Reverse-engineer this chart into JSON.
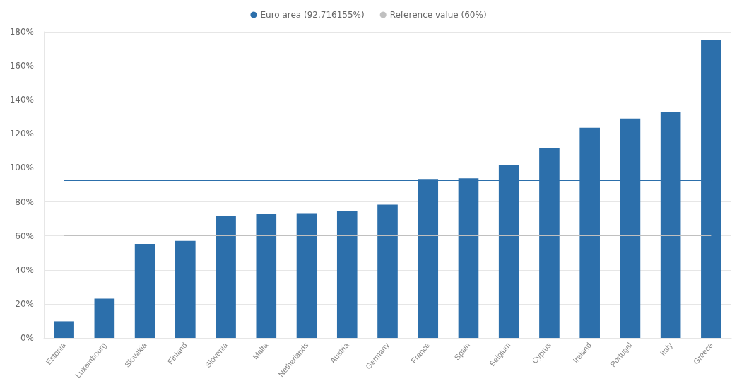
{
  "chart_data": {
    "type": "bar",
    "categories": [
      "Estonia",
      "Luxembourg",
      "Slovakia",
      "Finland",
      "Slovenia",
      "Malta",
      "Netherlands",
      "Austria",
      "Germany",
      "France",
      "Spain",
      "Belgium",
      "Cyprus",
      "Ireland",
      "Portugal",
      "Italy",
      "Greece"
    ],
    "values": [
      9.8,
      23.1,
      55.3,
      57.1,
      71.7,
      72.9,
      73.4,
      74.4,
      78.4,
      93.4,
      93.8,
      101.4,
      111.7,
      123.6,
      129.0,
      132.6,
      175.1
    ],
    "color": "#2c6fab",
    "ylim": [
      0,
      180
    ],
    "yticks": [
      {
        "value": 0,
        "label": "0%"
      },
      {
        "value": 20,
        "label": "20%"
      },
      {
        "value": 40,
        "label": "40%"
      },
      {
        "value": 60,
        "label": "60%"
      },
      {
        "value": 80,
        "label": "80%"
      },
      {
        "value": 100,
        "label": "100%"
      },
      {
        "value": 120,
        "label": "120%"
      },
      {
        "value": 140,
        "label": "140%"
      },
      {
        "value": 160,
        "label": "160%"
      },
      {
        "value": 180,
        "label": "180%"
      }
    ],
    "grid": "y",
    "legend": "top",
    "ref_lines": [
      {
        "axis": "y",
        "value": 92.716155,
        "label": "Euro area (92.716155%)",
        "color": "#2c6fab"
      },
      {
        "axis": "y",
        "value": 60,
        "label": "Reference value (60%)",
        "color": "#c0c0c0"
      }
    ]
  }
}
